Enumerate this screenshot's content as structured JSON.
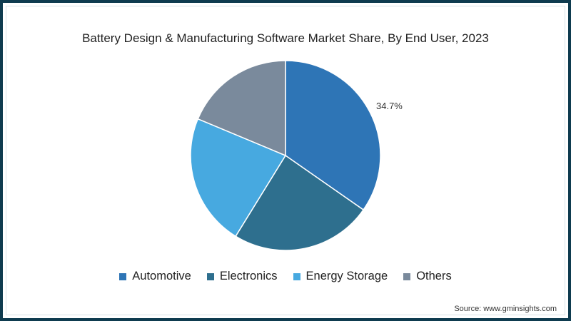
{
  "chart_data": {
    "type": "pie",
    "title": "Battery Design & Manufacturing Software Market Share, By End User, 2023",
    "categories": [
      "Automotive",
      "Electronics",
      "Energy Storage",
      "Others"
    ],
    "values": [
      34.7,
      24.1,
      22.5,
      18.7
    ],
    "colors": [
      "#2e75b6",
      "#2e6f8e",
      "#47a9e0",
      "#7a8a9c"
    ],
    "data_labels": [
      {
        "category": "Automotive",
        "text": "34.7%"
      }
    ],
    "legend_position": "bottom",
    "start_angle": "12 o'clock, clockwise"
  },
  "title": "Battery Design & Manufacturing Software Market Share, By End User, 2023",
  "legend": [
    {
      "label": "Automotive",
      "color": "#2e75b6"
    },
    {
      "label": "Electronics",
      "color": "#2e6f8e"
    },
    {
      "label": "Energy Storage",
      "color": "#47a9e0"
    },
    {
      "label": "Others",
      "color": "#7a8a9c"
    }
  ],
  "label_automotive": "34.7%",
  "source": "Source: www.gminsights.com"
}
